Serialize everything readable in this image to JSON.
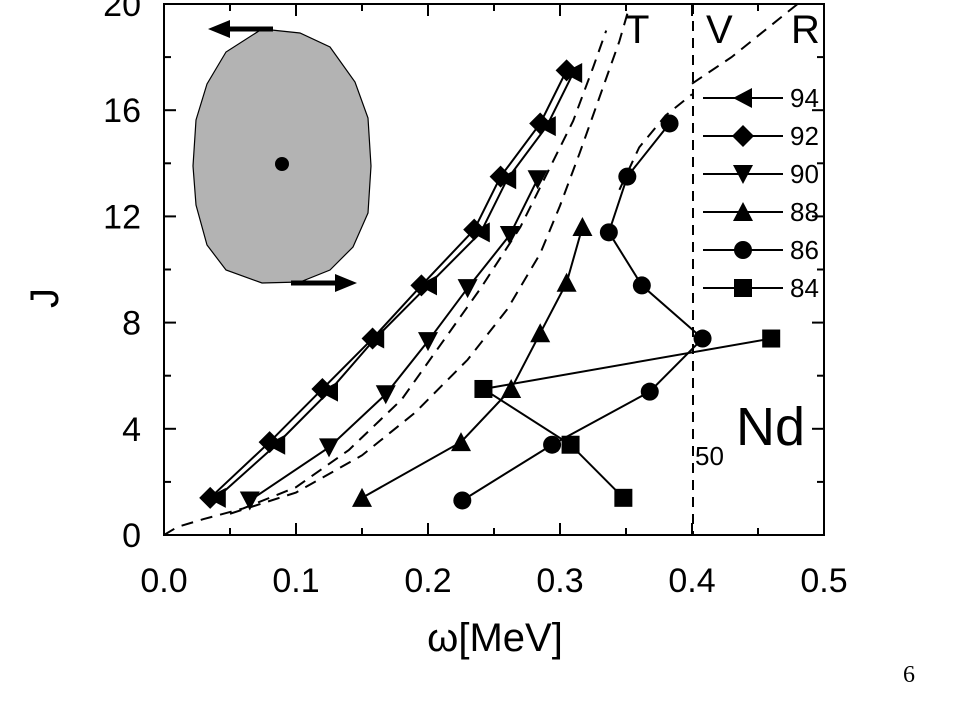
{
  "page_number": "6",
  "chart_data": {
    "type": "line",
    "xlabel": "ω[MeV]",
    "ylabel": "J",
    "xlim": [
      0.0,
      0.5
    ],
    "ylim": [
      0,
      20
    ],
    "x_ticks": [
      "0.0",
      "0.1",
      "0.2",
      "0.3",
      "0.4",
      "0.5"
    ],
    "y_ticks": [
      "0",
      "4",
      "8",
      "12",
      "16",
      "20"
    ],
    "region_labels": [
      "T",
      "V",
      "R"
    ],
    "nucleus": {
      "element": "Nd",
      "Z": "50"
    },
    "legend_position": "right",
    "boundary_omega": 0.4,
    "series": [
      {
        "name": "94",
        "marker": "triangle-left",
        "points": [
          [
            0.04,
            1.4
          ],
          [
            0.085,
            3.4
          ],
          [
            0.125,
            5.4
          ],
          [
            0.16,
            7.4
          ],
          [
            0.2,
            9.4
          ],
          [
            0.24,
            11.4
          ],
          [
            0.26,
            13.4
          ],
          [
            0.29,
            15.4
          ],
          [
            0.31,
            17.4
          ]
        ]
      },
      {
        "name": "92",
        "marker": "diamond",
        "points": [
          [
            0.035,
            1.4
          ],
          [
            0.08,
            3.5
          ],
          [
            0.12,
            5.5
          ],
          [
            0.158,
            7.4
          ],
          [
            0.195,
            9.4
          ],
          [
            0.235,
            11.5
          ],
          [
            0.255,
            13.5
          ],
          [
            0.285,
            15.5
          ],
          [
            0.305,
            17.5
          ]
        ]
      },
      {
        "name": "90",
        "marker": "triangle-down",
        "points": [
          [
            0.065,
            1.3
          ],
          [
            0.125,
            3.3
          ],
          [
            0.168,
            5.3
          ],
          [
            0.2,
            7.3
          ],
          [
            0.23,
            9.3
          ],
          [
            0.262,
            11.3
          ],
          [
            0.283,
            13.4
          ]
        ]
      },
      {
        "name": "88",
        "marker": "triangle-up",
        "points": [
          [
            0.15,
            1.4
          ],
          [
            0.225,
            3.5
          ],
          [
            0.263,
            5.5
          ],
          [
            0.285,
            7.6
          ],
          [
            0.305,
            9.5
          ],
          [
            0.317,
            11.6
          ]
        ]
      },
      {
        "name": "86",
        "marker": "circle",
        "points": [
          [
            0.226,
            1.3
          ],
          [
            0.294,
            3.4
          ],
          [
            0.368,
            5.4
          ],
          [
            0.408,
            7.4
          ],
          [
            0.362,
            9.4
          ],
          [
            0.337,
            11.4
          ],
          [
            0.351,
            13.5
          ],
          [
            0.383,
            15.5
          ]
        ]
      },
      {
        "name": "84",
        "marker": "square",
        "points": [
          [
            0.348,
            1.4
          ],
          [
            0.308,
            3.4
          ],
          [
            0.242,
            5.5
          ],
          [
            0.46,
            7.4
          ]
        ]
      }
    ],
    "dashed_curves": [
      [
        [
          0.0,
          0.0
        ],
        [
          0.01,
          0.3
        ],
        [
          0.03,
          0.6
        ],
        [
          0.06,
          1.0
        ],
        [
          0.1,
          1.8
        ],
        [
          0.14,
          3.2
        ],
        [
          0.18,
          5.1
        ],
        [
          0.21,
          7.2
        ],
        [
          0.24,
          9.3
        ],
        [
          0.27,
          11.6
        ],
        [
          0.29,
          13.6
        ],
        [
          0.31,
          15.6
        ],
        [
          0.325,
          17.6
        ],
        [
          0.335,
          19.0
        ]
      ],
      [
        [
          0.05,
          0.8
        ],
        [
          0.1,
          1.6
        ],
        [
          0.15,
          3.0
        ],
        [
          0.19,
          4.6
        ],
        [
          0.23,
          6.6
        ],
        [
          0.26,
          8.5
        ],
        [
          0.285,
          10.6
        ],
        [
          0.3,
          12.4
        ],
        [
          0.315,
          14.4
        ],
        [
          0.33,
          16.5
        ],
        [
          0.345,
          18.6
        ],
        [
          0.352,
          19.8
        ]
      ],
      [
        [
          0.345,
          13.0
        ],
        [
          0.36,
          14.6
        ],
        [
          0.38,
          15.8
        ],
        [
          0.4,
          16.6
        ]
      ],
      [
        [
          0.4,
          17.0
        ],
        [
          0.43,
          18.0
        ],
        [
          0.46,
          19.2
        ],
        [
          0.48,
          20.0
        ]
      ]
    ]
  }
}
